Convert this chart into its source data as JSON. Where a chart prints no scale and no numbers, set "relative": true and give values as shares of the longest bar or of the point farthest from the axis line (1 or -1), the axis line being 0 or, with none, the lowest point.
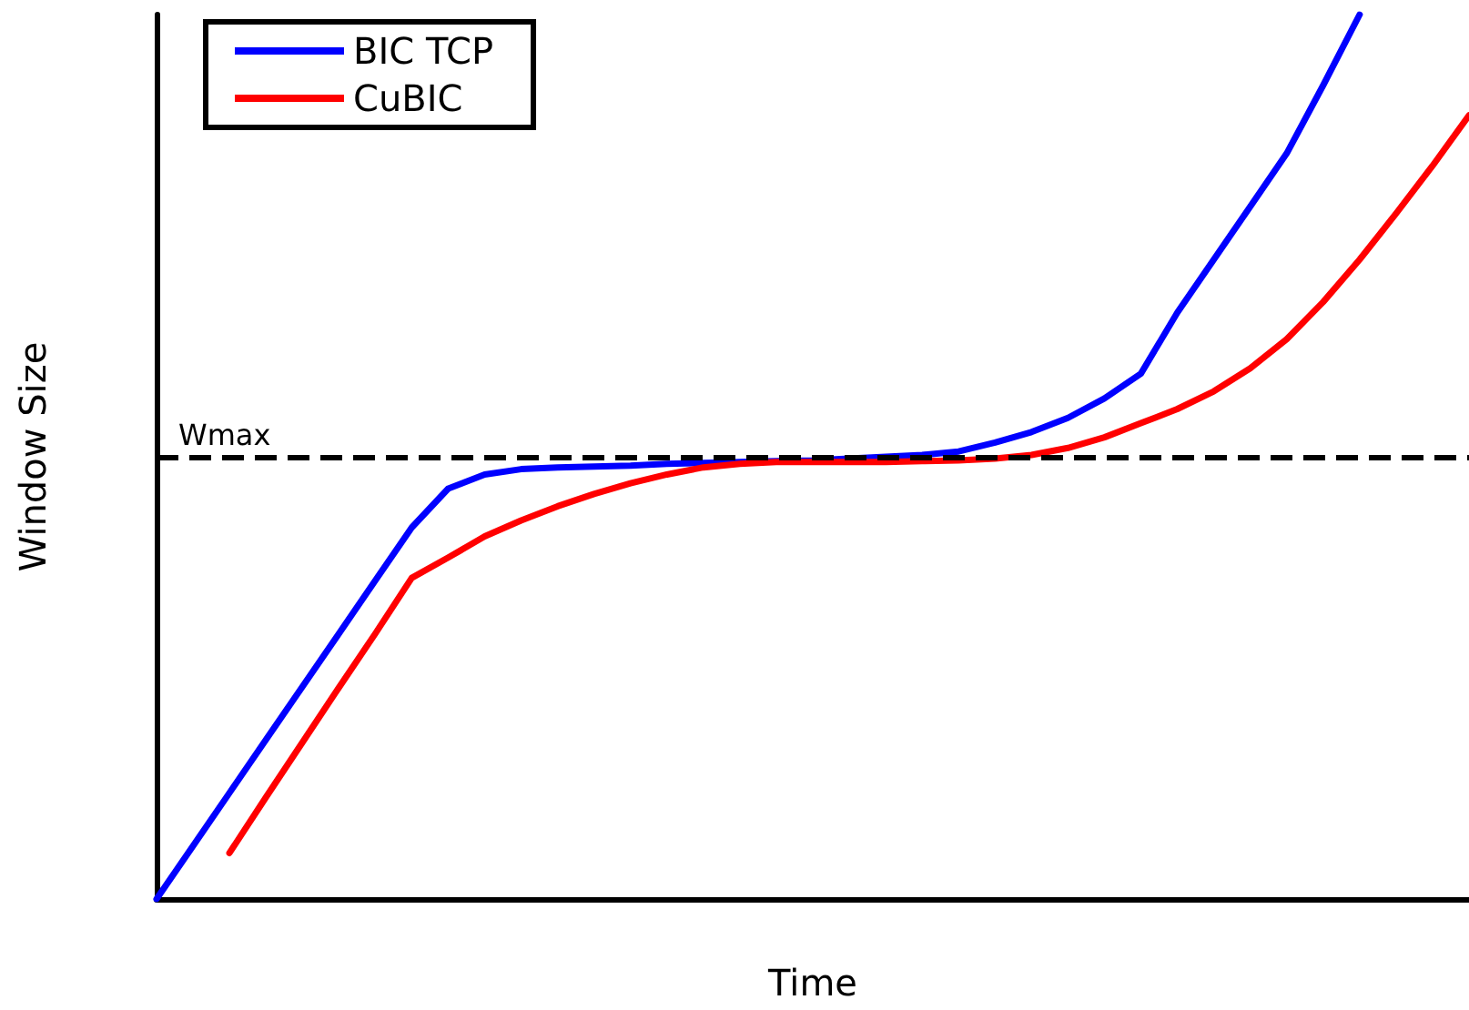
{
  "chart_data": {
    "type": "line",
    "relative": true,
    "xlabel": "Time",
    "ylabel": "Window Size",
    "categories": [
      null,
      null,
      null,
      null,
      null,
      null,
      null,
      null,
      null,
      null,
      null,
      null,
      null,
      null,
      null,
      null,
      null,
      null,
      null,
      null,
      null,
      null,
      null,
      null,
      null,
      null,
      null,
      null,
      null,
      null,
      null,
      null,
      null,
      null,
      null,
      null,
      null
    ],
    "series": [
      {
        "name": "BIC TCP",
        "color": "#0000ff",
        "values": [
          0,
          0.06,
          0.12,
          0.18,
          0.24,
          0.3,
          0.36,
          0.42,
          0.464,
          0.48,
          0.486,
          0.488,
          0.489,
          0.49,
          0.492,
          0.493,
          0.494,
          0.495,
          0.496,
          0.498,
          0.5,
          0.502,
          0.506,
          0.516,
          0.528,
          0.544,
          0.566,
          0.594,
          0.663,
          0.723,
          0.783,
          0.843,
          0.92,
          1,
          null,
          null,
          null
        ]
      },
      {
        "name": "CuBIC",
        "color": "#ff0000",
        "values": [
          null,
          null,
          0.052,
          0.115,
          0.177,
          0.239,
          0.3,
          0.363,
          0.386,
          0.41,
          0.428,
          0.444,
          0.458,
          0.47,
          0.48,
          0.488,
          0.492,
          0.494,
          0.494,
          0.494,
          0.494,
          0.495,
          0.496,
          0.498,
          0.502,
          0.51,
          0.522,
          0.538,
          0.554,
          0.574,
          0.6,
          0.633,
          0.675,
          0.723,
          0.775,
          0.829,
          0.886
        ]
      }
    ],
    "ref_lines": [
      {
        "axis": "y",
        "value": 0.496,
        "label": "Wmax",
        "color": "#000000",
        "line_style": "dashed"
      }
    ],
    "grid": false,
    "legend": "top left",
    "marker": "none",
    "line_style": "solid"
  }
}
